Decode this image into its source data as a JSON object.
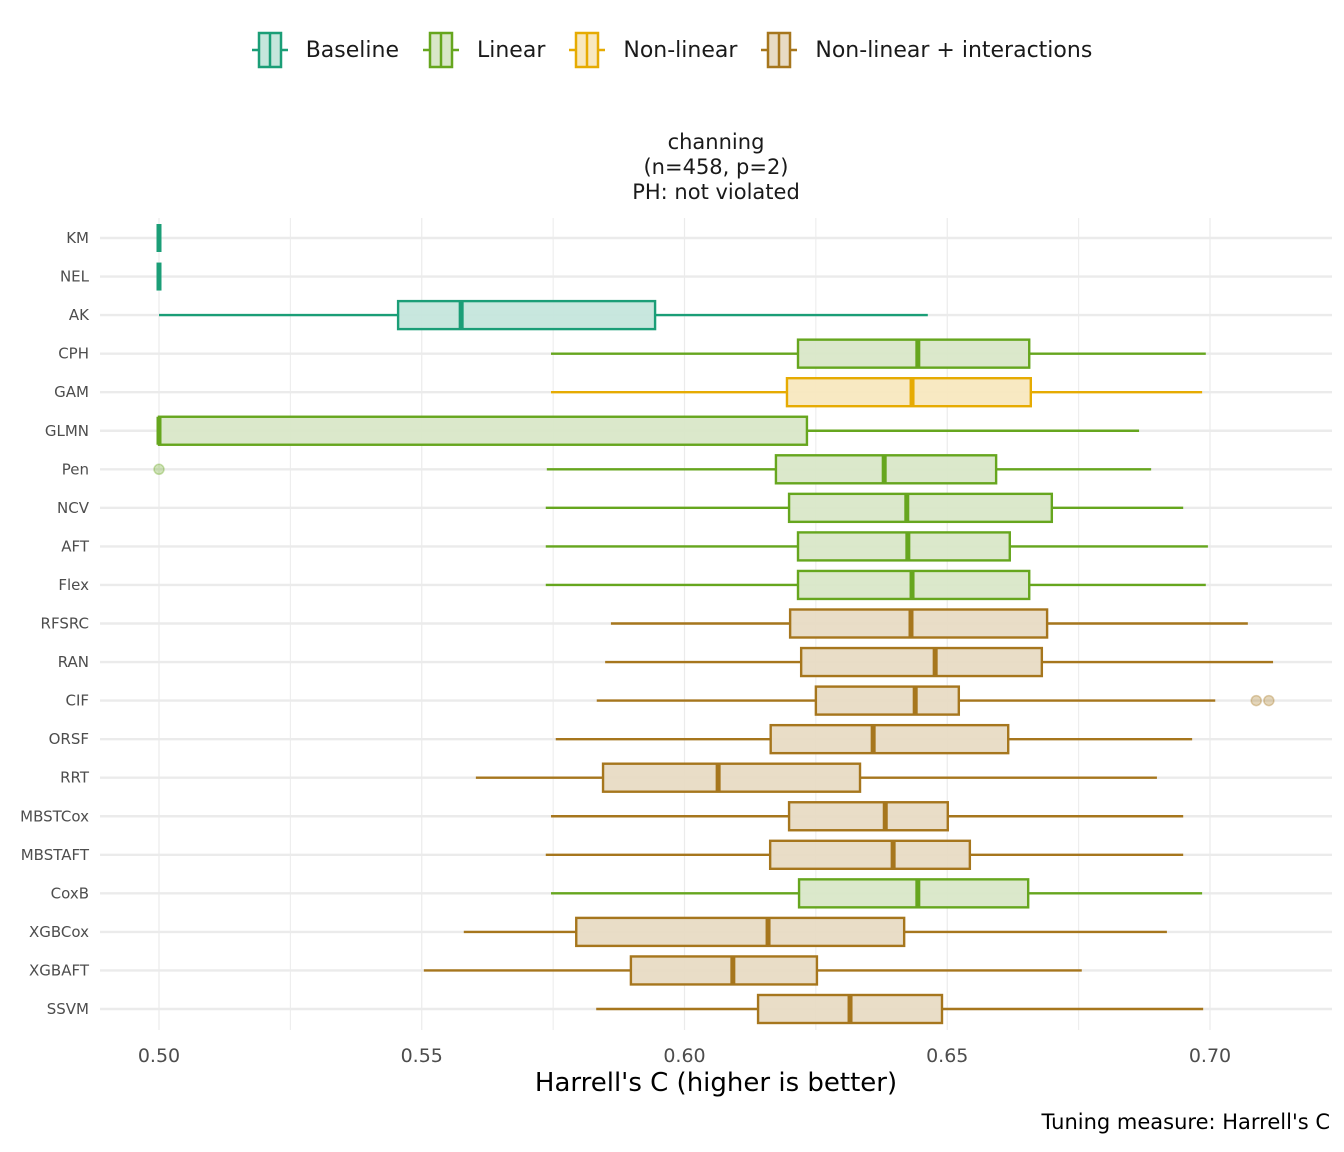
{
  "legend": {
    "items": [
      {
        "label": "Baseline",
        "stroke": "#1b9e77",
        "fill": "#c5e6dc"
      },
      {
        "label": "Linear",
        "stroke": "#66a61e",
        "fill": "#d9e7c8"
      },
      {
        "label": "Non-linear",
        "stroke": "#e6ab02",
        "fill": "#f8e8bf"
      },
      {
        "label": "Non-linear + interactions",
        "stroke": "#a6761d",
        "fill": "#e8dbc4"
      }
    ],
    "position": "top"
  },
  "strip": {
    "line1": "channing",
    "line2": "(n=458, p=2)",
    "line3": "PH: not violated"
  },
  "caption": "Tuning measure: Harrell's C",
  "chart_data": {
    "type": "boxplot",
    "orientation": "horizontal",
    "title": "channing (n=458, p=2) PH: not violated",
    "xlabel": "Harrell's C (higher is better)",
    "ylabel": "",
    "xlim": [
      0.4885,
      0.7235
    ],
    "xticks": [
      0.5,
      0.55,
      0.6,
      0.65,
      0.7
    ],
    "xtick_labels": [
      "0.50",
      "0.55",
      "0.60",
      "0.65",
      "0.70"
    ],
    "grid": true,
    "legend_position": "top",
    "series": [
      {
        "name": "KM",
        "group": "Baseline",
        "min": 0.5,
        "q1": 0.5,
        "median": 0.5,
        "q3": 0.5,
        "max": 0.5,
        "outliers": []
      },
      {
        "name": "NEL",
        "group": "Baseline",
        "min": 0.5,
        "q1": 0.5,
        "median": 0.5,
        "q3": 0.5,
        "max": 0.5,
        "outliers": []
      },
      {
        "name": "AK",
        "group": "Baseline",
        "min": 0.5,
        "q1": 0.5455,
        "median": 0.5575,
        "q3": 0.5944,
        "max": 0.6463,
        "outliers": []
      },
      {
        "name": "CPH",
        "group": "Linear",
        "min": 0.5746,
        "q1": 0.6216,
        "median": 0.6444,
        "q3": 0.6656,
        "max": 0.6992,
        "outliers": []
      },
      {
        "name": "GAM",
        "group": "Non-linear",
        "min": 0.5746,
        "q1": 0.6195,
        "median": 0.6433,
        "q3": 0.6659,
        "max": 0.6985,
        "outliers": []
      },
      {
        "name": "GLMN",
        "group": "Linear",
        "min": 0.5,
        "q1": 0.5,
        "median": 0.5,
        "q3": 0.6233,
        "max": 0.6865,
        "outliers": []
      },
      {
        "name": "Pen",
        "group": "Linear",
        "min": 0.5738,
        "q1": 0.6174,
        "median": 0.638,
        "q3": 0.6593,
        "max": 0.6888,
        "outliers": [
          0.5
        ]
      },
      {
        "name": "NCV",
        "group": "Linear",
        "min": 0.5736,
        "q1": 0.6199,
        "median": 0.6423,
        "q3": 0.6699,
        "max": 0.6949,
        "outliers": []
      },
      {
        "name": "AFT",
        "group": "Linear",
        "min": 0.5736,
        "q1": 0.6216,
        "median": 0.6425,
        "q3": 0.6619,
        "max": 0.6996,
        "outliers": []
      },
      {
        "name": "Flex",
        "group": "Linear",
        "min": 0.5736,
        "q1": 0.6216,
        "median": 0.6433,
        "q3": 0.6656,
        "max": 0.6992,
        "outliers": []
      },
      {
        "name": "RFSRC",
        "group": "Non-linear + interactions",
        "min": 0.586,
        "q1": 0.6201,
        "median": 0.6431,
        "q3": 0.669,
        "max": 0.7072,
        "outliers": []
      },
      {
        "name": "RAN",
        "group": "Non-linear + interactions",
        "min": 0.5849,
        "q1": 0.6222,
        "median": 0.6477,
        "q3": 0.668,
        "max": 0.712,
        "outliers": []
      },
      {
        "name": "CIF",
        "group": "Non-linear + interactions",
        "min": 0.5833,
        "q1": 0.625,
        "median": 0.6439,
        "q3": 0.6522,
        "max": 0.701,
        "outliers": [
          0.7088,
          0.7112
        ]
      },
      {
        "name": "ORSF",
        "group": "Non-linear + interactions",
        "min": 0.5755,
        "q1": 0.6164,
        "median": 0.6359,
        "q3": 0.6616,
        "max": 0.6966,
        "outliers": []
      },
      {
        "name": "RRT",
        "group": "Non-linear + interactions",
        "min": 0.5603,
        "q1": 0.5845,
        "median": 0.6064,
        "q3": 0.6334,
        "max": 0.6899,
        "outliers": []
      },
      {
        "name": "MBSTCox",
        "group": "Non-linear + interactions",
        "min": 0.5746,
        "q1": 0.6199,
        "median": 0.6382,
        "q3": 0.6501,
        "max": 0.6949,
        "outliers": []
      },
      {
        "name": "MBSTAFT",
        "group": "Non-linear + interactions",
        "min": 0.5736,
        "q1": 0.6163,
        "median": 0.6397,
        "q3": 0.6543,
        "max": 0.6949,
        "outliers": []
      },
      {
        "name": "CoxB",
        "group": "Linear",
        "min": 0.5746,
        "q1": 0.6218,
        "median": 0.6444,
        "q3": 0.6654,
        "max": 0.6985,
        "outliers": []
      },
      {
        "name": "XGBCox",
        "group": "Non-linear + interactions",
        "min": 0.558,
        "q1": 0.5794,
        "median": 0.6159,
        "q3": 0.6418,
        "max": 0.6918,
        "outliers": []
      },
      {
        "name": "XGBAFT",
        "group": "Non-linear + interactions",
        "min": 0.5504,
        "q1": 0.5898,
        "median": 0.6092,
        "q3": 0.6252,
        "max": 0.6756,
        "outliers": []
      },
      {
        "name": "SSVM",
        "group": "Non-linear + interactions",
        "min": 0.5832,
        "q1": 0.614,
        "median": 0.6315,
        "q3": 0.649,
        "max": 0.6987,
        "outliers": []
      }
    ]
  }
}
